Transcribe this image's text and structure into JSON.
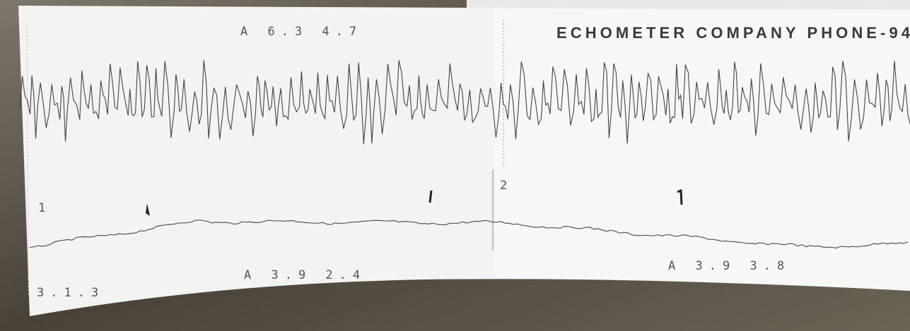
{
  "header": {
    "title": "ECHOMETER COMPANY PHONE-94",
    "top_reading": "A 6.3 4.7"
  },
  "markers": [
    {
      "label": "1"
    },
    {
      "label": "2"
    }
  ],
  "readings": [
    {
      "text": "A 3.9 2.4"
    },
    {
      "text": "A 3.9 3.8"
    }
  ],
  "footer": {
    "code": "3.1.3"
  }
}
